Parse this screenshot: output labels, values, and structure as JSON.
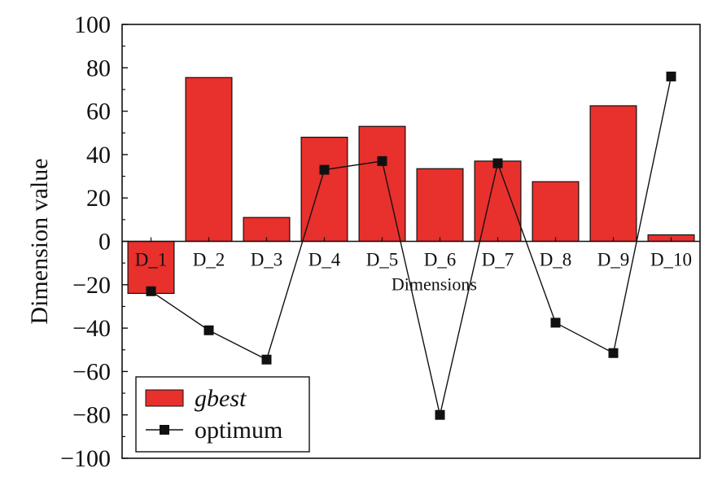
{
  "chart_data": {
    "type": "bar",
    "categories": [
      "D_1",
      "D_2",
      "D_3",
      "D_4",
      "D_5",
      "D_6",
      "D_7",
      "D_8",
      "D_9",
      "D_10"
    ],
    "series": [
      {
        "name": "gbest",
        "kind": "bar",
        "color": "#e8302c",
        "values": [
          -24,
          75.5,
          11,
          48,
          53,
          33.5,
          37,
          27.5,
          62.5,
          3
        ]
      },
      {
        "name": "optimum",
        "kind": "line",
        "color": "#111111",
        "marker": "square",
        "values": [
          -23,
          -41,
          -54.5,
          33,
          37,
          -80,
          36,
          -37.5,
          -51.5,
          76
        ]
      }
    ],
    "xlabel": "Dimensions",
    "ylabel": "Dimension value",
    "ylim": [
      -100,
      100
    ],
    "yticks": [
      -100,
      -80,
      -60,
      -40,
      -20,
      0,
      20,
      40,
      60,
      80,
      100
    ],
    "grid": false,
    "legend_position": "bottom-left"
  }
}
